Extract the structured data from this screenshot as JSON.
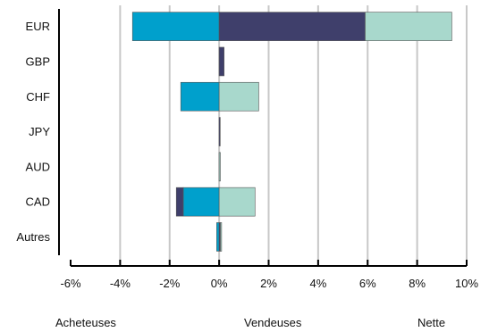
{
  "chart_data": {
    "type": "bar",
    "orientation": "horizontal",
    "stacked": true,
    "categories": [
      "EUR",
      "GBP",
      "CHF",
      "JPY",
      "AUD",
      "CAD",
      "Autres"
    ],
    "series": [
      {
        "name": "Acheteuses",
        "color": "#00a0cc",
        "values": [
          -3.5,
          0.0,
          -1.55,
          0.0,
          0.0,
          -1.45,
          -0.1
        ]
      },
      {
        "name": "Vendeuses",
        "color": "#3f3f6b",
        "values": [
          5.9,
          0.2,
          0.0,
          0.03,
          0.0,
          -0.28,
          0.05
        ]
      },
      {
        "name": "Nette",
        "color": "#a8d8cc",
        "values": [
          3.5,
          0.0,
          1.6,
          0.0,
          0.05,
          1.45,
          0.05
        ]
      }
    ],
    "xlim": [
      -6,
      10
    ],
    "xticks": [
      "-6%",
      "-4%",
      "-2%",
      "0%",
      "2%",
      "4%",
      "6%",
      "8%",
      "10%"
    ],
    "grid": "vertical",
    "legend_position": "bottom"
  }
}
